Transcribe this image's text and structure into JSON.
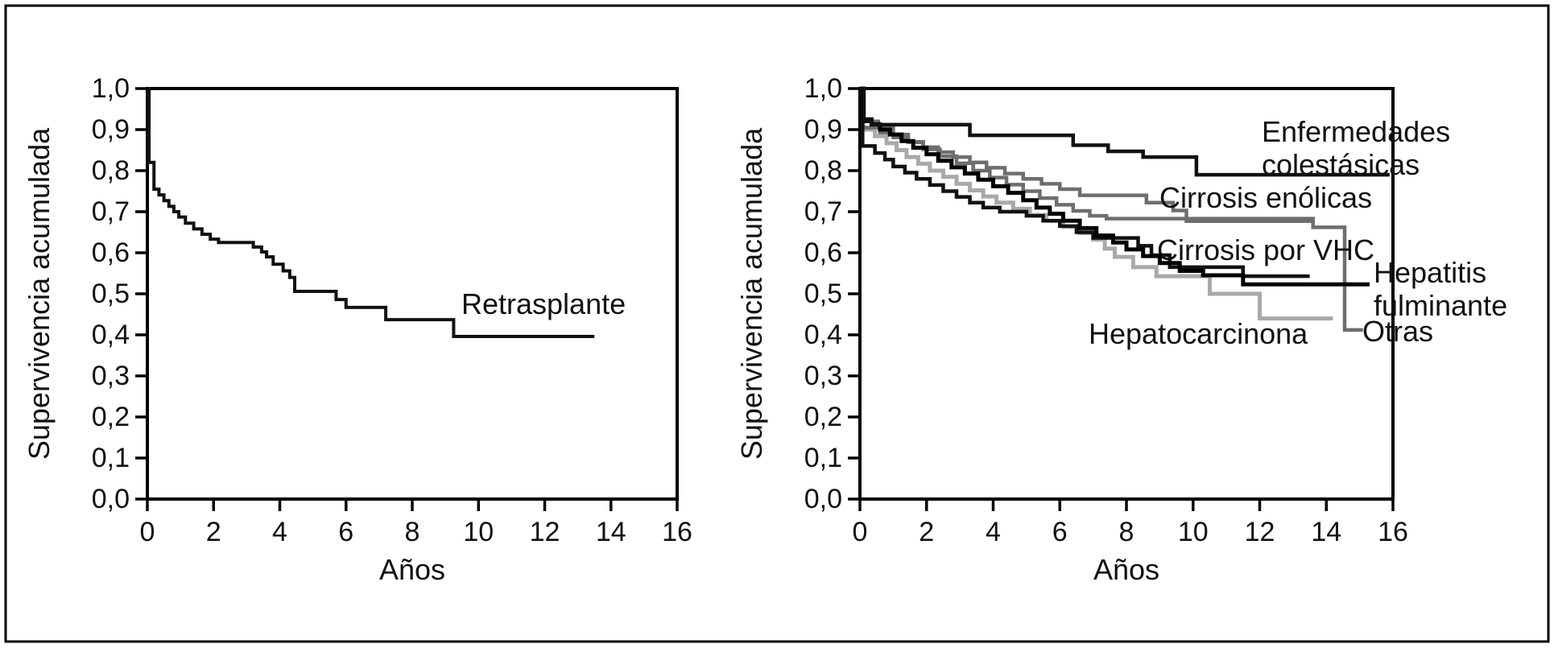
{
  "figure": {
    "description_colors": {
      "black": "#111111",
      "dark_gray": "#6e6e6e",
      "light_gray": "#a9a9a9",
      "background": "#ffffff",
      "frame": "#000000"
    }
  },
  "chart_data": [
    {
      "panel": "left",
      "type": "line",
      "subtype": "kaplan-meier-step",
      "xlabel": "Años",
      "ylabel": "Supervivencia acumulada",
      "xlim": [
        0,
        16
      ],
      "ylim": [
        0.0,
        1.0
      ],
      "xticks": [
        0,
        2,
        4,
        6,
        8,
        10,
        12,
        14,
        16
      ],
      "xtick_labels": [
        "0",
        "2",
        "4",
        "6",
        "8",
        "10",
        "12",
        "14",
        "16"
      ],
      "ytick_labels": [
        "0,0",
        "0,1",
        "0,2",
        "0,3",
        "0,4",
        "0,5",
        "0,6",
        "0,7",
        "0,8",
        "0,9",
        "1,0"
      ],
      "grid": false,
      "legend_position": "inline-labels",
      "series": [
        {
          "id": "retrasplante",
          "label_lines": [
            "Retrasplante"
          ],
          "color": "#111111",
          "width": 4,
          "start_value": 1.0,
          "end_time": 13.5,
          "steps": [
            [
              0.05,
              0.82
            ],
            [
              0.2,
              0.755
            ],
            [
              0.35,
              0.741
            ],
            [
              0.5,
              0.727
            ],
            [
              0.65,
              0.713
            ],
            [
              0.8,
              0.7
            ],
            [
              0.95,
              0.687
            ],
            [
              1.15,
              0.672
            ],
            [
              1.4,
              0.658
            ],
            [
              1.65,
              0.645
            ],
            [
              1.9,
              0.633
            ],
            [
              2.15,
              0.625
            ],
            [
              3.2,
              0.614
            ],
            [
              3.45,
              0.602
            ],
            [
              3.6,
              0.59
            ],
            [
              3.8,
              0.572
            ],
            [
              4.1,
              0.556
            ],
            [
              4.3,
              0.54
            ],
            [
              4.45,
              0.506
            ],
            [
              5.7,
              0.486
            ],
            [
              6.0,
              0.467
            ],
            [
              7.2,
              0.437
            ],
            [
              9.25,
              0.396
            ]
          ]
        }
      ]
    },
    {
      "panel": "right",
      "type": "line",
      "subtype": "kaplan-meier-step",
      "xlabel": "Años",
      "ylabel": "Supervivencia acumulada",
      "xlim": [
        0,
        16
      ],
      "ylim": [
        0.0,
        1.0
      ],
      "xticks": [
        0,
        2,
        4,
        6,
        8,
        10,
        12,
        14,
        16
      ],
      "xtick_labels": [
        "0",
        "2",
        "4",
        "6",
        "8",
        "10",
        "12",
        "14",
        "16"
      ],
      "ytick_labels": [
        "0,0",
        "0,1",
        "0,2",
        "0,3",
        "0,4",
        "0,5",
        "0,6",
        "0,7",
        "0,8",
        "0,9",
        "1,0"
      ],
      "grid": false,
      "legend_position": "inline-labels",
      "series": [
        {
          "id": "hepatocarcinona",
          "label_lines": [
            "Hepatocarcinona"
          ],
          "color": "#a9a9a9",
          "width": 5,
          "start_value": 1.0,
          "end_time": 14.2,
          "steps": [
            [
              0.1,
              0.9
            ],
            [
              0.45,
              0.884
            ],
            [
              0.8,
              0.867
            ],
            [
              1.1,
              0.85
            ],
            [
              1.4,
              0.833
            ],
            [
              1.75,
              0.817
            ],
            [
              2.1,
              0.8
            ],
            [
              2.5,
              0.785
            ],
            [
              2.9,
              0.768
            ],
            [
              3.3,
              0.752
            ],
            [
              3.7,
              0.737
            ],
            [
              4.1,
              0.722
            ],
            [
              4.6,
              0.707
            ],
            [
              5.1,
              0.692
            ],
            [
              5.6,
              0.678
            ],
            [
              6.1,
              0.663
            ],
            [
              6.6,
              0.648
            ],
            [
              7.0,
              0.632
            ],
            [
              7.35,
              0.61
            ],
            [
              7.65,
              0.59
            ],
            [
              8.2,
              0.565
            ],
            [
              8.9,
              0.543
            ],
            [
              10.5,
              0.5
            ],
            [
              12.0,
              0.44
            ]
          ]
        },
        {
          "id": "otras",
          "label_lines": [
            "Otras"
          ],
          "color": "#6e6e6e",
          "width": 4.5,
          "start_value": 1.0,
          "end_time": 15.1,
          "steps": [
            [
              0.1,
              0.92
            ],
            [
              0.55,
              0.905
            ],
            [
              1.0,
              0.888
            ],
            [
              1.45,
              0.87
            ],
            [
              1.9,
              0.852
            ],
            [
              2.4,
              0.835
            ],
            [
              2.9,
              0.818
            ],
            [
              3.4,
              0.8
            ],
            [
              3.9,
              0.783
            ],
            [
              4.4,
              0.766
            ],
            [
              4.9,
              0.75
            ],
            [
              5.4,
              0.733
            ],
            [
              5.9,
              0.717
            ],
            [
              6.4,
              0.702
            ],
            [
              6.9,
              0.69
            ],
            [
              7.4,
              0.683
            ],
            [
              13.6,
              0.662
            ],
            [
              14.55,
              0.412
            ]
          ]
        },
        {
          "id": "enolicas",
          "label_lines": [
            "Cirrosis enólicas"
          ],
          "color": "#6e6e6e",
          "width": 4.5,
          "start_value": 1.0,
          "end_time": 13.65,
          "steps": [
            [
              0.08,
              0.905
            ],
            [
              0.6,
              0.893
            ],
            [
              1.0,
              0.881
            ],
            [
              1.45,
              0.869
            ],
            [
              1.9,
              0.857
            ],
            [
              2.35,
              0.845
            ],
            [
              2.8,
              0.833
            ],
            [
              3.3,
              0.82
            ],
            [
              3.8,
              0.807
            ],
            [
              4.35,
              0.793
            ],
            [
              4.9,
              0.78
            ],
            [
              5.45,
              0.768
            ],
            [
              6.0,
              0.755
            ],
            [
              6.6,
              0.74
            ],
            [
              8.6,
              0.722
            ],
            [
              9.4,
              0.703
            ],
            [
              9.8,
              0.677
            ]
          ]
        },
        {
          "id": "vhc",
          "label_lines": [
            "Cirrosis por VHC"
          ],
          "color": "#111111",
          "width": 4.5,
          "start_value": 1.0,
          "end_time": 13.5,
          "steps": [
            [
              0.08,
              0.86
            ],
            [
              0.45,
              0.843
            ],
            [
              0.75,
              0.827
            ],
            [
              1.0,
              0.81
            ],
            [
              1.35,
              0.795
            ],
            [
              1.7,
              0.78
            ],
            [
              2.1,
              0.765
            ],
            [
              2.5,
              0.75
            ],
            [
              2.9,
              0.736
            ],
            [
              3.3,
              0.722
            ],
            [
              3.7,
              0.71
            ],
            [
              4.2,
              0.7
            ],
            [
              5.0,
              0.69
            ],
            [
              5.5,
              0.678
            ],
            [
              6.0,
              0.665
            ],
            [
              6.5,
              0.65
            ],
            [
              7.0,
              0.636
            ],
            [
              8.35,
              0.617
            ],
            [
              8.75,
              0.594
            ],
            [
              9.3,
              0.565
            ],
            [
              11.5,
              0.543
            ]
          ]
        },
        {
          "id": "fulminante",
          "label_lines": [
            "Hepatitis",
            "fulminante"
          ],
          "color": "#000000",
          "width": 5,
          "start_value": 1.0,
          "end_time": 15.3,
          "steps": [
            [
              0.1,
              0.925
            ],
            [
              0.35,
              0.913
            ],
            [
              0.6,
              0.9
            ],
            [
              0.9,
              0.888
            ],
            [
              1.25,
              0.872
            ],
            [
              1.6,
              0.856
            ],
            [
              2.0,
              0.84
            ],
            [
              2.35,
              0.824
            ],
            [
              2.75,
              0.808
            ],
            [
              3.15,
              0.793
            ],
            [
              3.55,
              0.778
            ],
            [
              4.0,
              0.762
            ],
            [
              4.45,
              0.746
            ],
            [
              4.9,
              0.728
            ],
            [
              5.3,
              0.71
            ],
            [
              5.7,
              0.695
            ],
            [
              6.1,
              0.678
            ],
            [
              6.6,
              0.66
            ],
            [
              7.1,
              0.642
            ],
            [
              7.6,
              0.625
            ],
            [
              8.0,
              0.608
            ],
            [
              8.5,
              0.592
            ],
            [
              9.0,
              0.575
            ],
            [
              9.6,
              0.556
            ],
            [
              10.3,
              0.545
            ],
            [
              11.5,
              0.523
            ]
          ]
        },
        {
          "id": "colestasicas",
          "label_lines": [
            "Enfermedades",
            "colestásicas"
          ],
          "color": "#111111",
          "width": 4.5,
          "start_value": 1.0,
          "end_time": 15.9,
          "steps": [
            [
              0.12,
              0.92
            ],
            [
              0.35,
              0.912
            ],
            [
              3.3,
              0.886
            ],
            [
              6.4,
              0.862
            ],
            [
              7.45,
              0.847
            ],
            [
              8.5,
              0.833
            ],
            [
              10.1,
              0.79
            ]
          ]
        }
      ]
    }
  ]
}
